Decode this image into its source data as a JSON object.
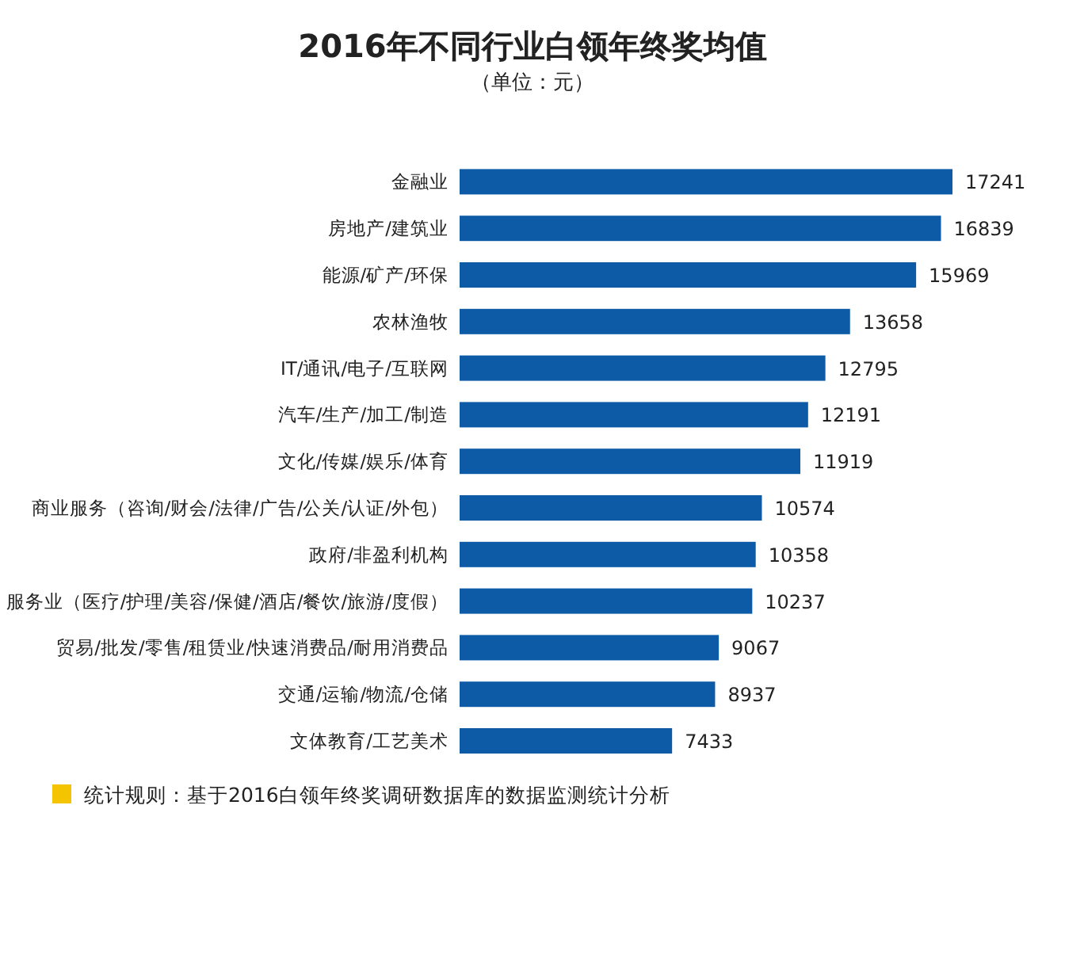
{
  "chart_data": {
    "type": "bar",
    "orientation": "horizontal",
    "title": "2016年不同行业白领年终奖均值",
    "subtitle": "（单位：元）",
    "categories": [
      "金融业",
      "房地产/建筑业",
      "能源/矿产/环保",
      "农林渔牧",
      "IT/通讯/电子/互联网",
      "汽车/生产/加工/制造",
      "文化/传媒/娱乐/体育",
      "商业服务（咨询/财会/法律/广告/公关/认证/外包）",
      "政府/非盈利机构",
      "服务业（医疗/护理/美容/保健/酒店/餐饮/旅游/度假）",
      "贸易/批发/零售/租赁业/快速消费品/耐用消费品",
      "交通/运输/物流/仓储",
      "文体教育/工艺美术"
    ],
    "values": [
      17241,
      16839,
      15969,
      13658,
      12795,
      12191,
      11919,
      10574,
      10358,
      10237,
      9067,
      8937,
      7433
    ],
    "color": "#0d5aa7",
    "data_labels": true,
    "annotations": [
      "统计规则：基于2016白领年终奖调研数据库的数据监测统计分析"
    ]
  }
}
